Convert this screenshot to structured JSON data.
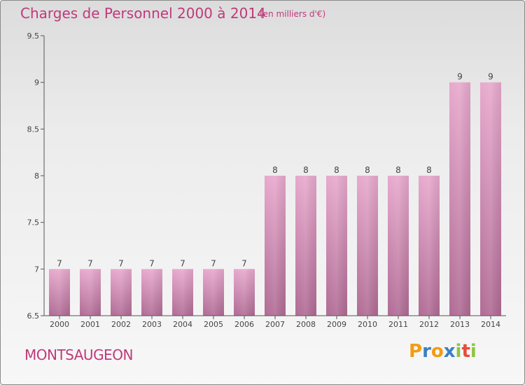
{
  "chart_data": {
    "type": "bar",
    "title": "Charges de Personnel 2000 à 2014",
    "subtitle": "(en milliers d'€)",
    "categories": [
      "2000",
      "2001",
      "2002",
      "2003",
      "2004",
      "2005",
      "2006",
      "2007",
      "2008",
      "2009",
      "2010",
      "2011",
      "2012",
      "2013",
      "2014"
    ],
    "values": [
      7,
      7,
      7,
      7,
      7,
      7,
      7,
      8,
      8,
      8,
      8,
      8,
      8,
      9,
      9
    ],
    "data_labels": [
      "7",
      "7",
      "7",
      "7",
      "7",
      "7",
      "7",
      "8",
      "8",
      "8",
      "8",
      "8",
      "8",
      "9",
      "9"
    ],
    "ylim": [
      6.5,
      9.5
    ],
    "yticks": [
      "6.5",
      "7",
      "7.5",
      "8",
      "8.5",
      "9",
      "9.5"
    ],
    "xlabel": "",
    "ylabel": "",
    "grid": false,
    "bar_color": "#d98fba"
  },
  "footer": {
    "place_name": "MONTSAUGEON",
    "logo_letters": [
      "P",
      "r",
      "o",
      "x",
      "i",
      "t",
      "i"
    ],
    "logo_colors": [
      "#f39c12",
      "#3b7fc4",
      "#f39c12",
      "#3b7fc4",
      "#8cc63f",
      "#e74c3c",
      "#8cc63f"
    ]
  },
  "colors": {
    "accent": "#c0397a"
  }
}
